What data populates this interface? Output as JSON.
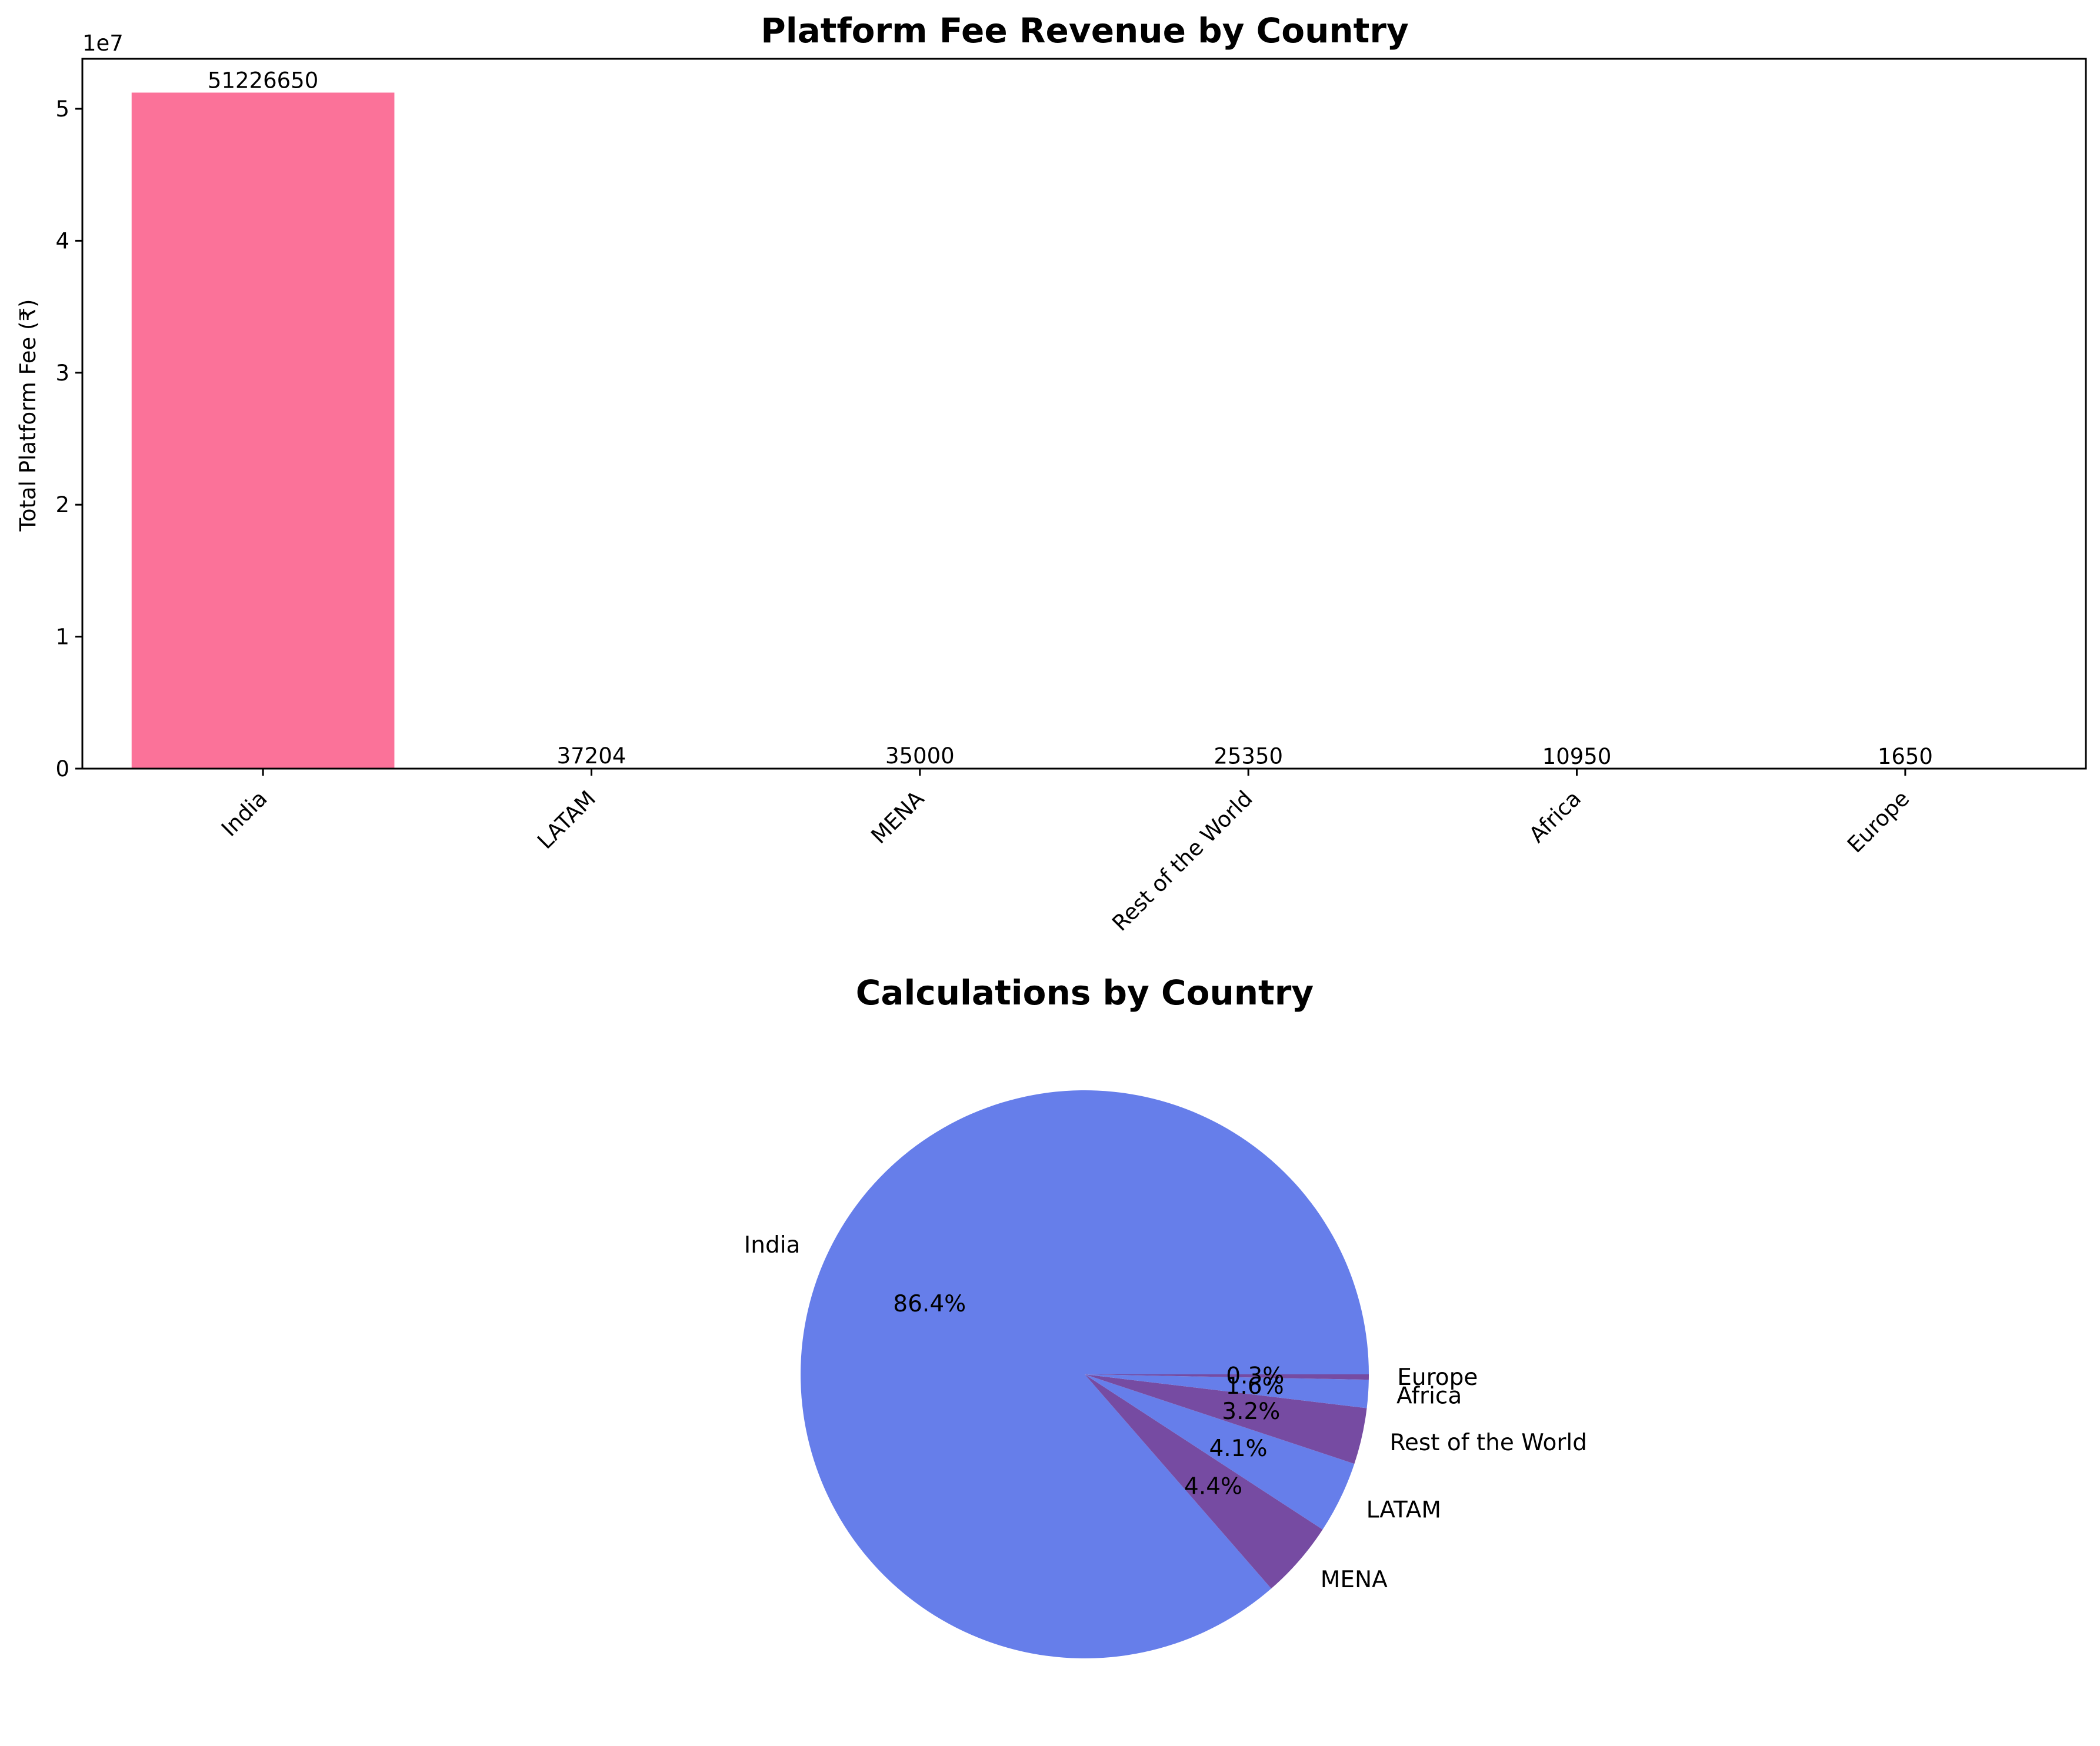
{
  "chart_data": [
    {
      "type": "bar",
      "title": "Platform Fee Revenue by Country",
      "xlabel": "",
      "ylabel": "Total Platform Fee (₹)",
      "y_scale_label": "1e7",
      "ylim": [
        0,
        53788000
      ],
      "yticks": [
        0,
        10000000,
        20000000,
        30000000,
        40000000,
        50000000
      ],
      "ytick_labels": [
        "0",
        "1",
        "2",
        "3",
        "4",
        "5"
      ],
      "categories": [
        "India",
        "LATAM",
        "MENA",
        "Rest of the World",
        "Africa",
        "Europe"
      ],
      "values": [
        51226650,
        37204,
        35000,
        25350,
        10950,
        1650
      ],
      "data_labels": [
        "51226650",
        "37204",
        "35000",
        "25350",
        "10950",
        "1650"
      ],
      "bar_color": "#fb7299",
      "grid": false
    },
    {
      "type": "pie",
      "title": "Calculations by Country",
      "labels": [
        "India",
        "MENA",
        "LATAM",
        "Rest of the World",
        "Africa",
        "Europe"
      ],
      "values": [
        86.4,
        4.4,
        4.1,
        3.2,
        1.6,
        0.3
      ],
      "pct_labels": [
        "86.4%",
        "4.4%",
        "4.1%",
        "3.2%",
        "1.6%",
        "0.3%"
      ],
      "colors": [
        "#667eea",
        "#764ba2",
        "#667eea",
        "#764ba2",
        "#667eea",
        "#764ba2"
      ]
    }
  ]
}
